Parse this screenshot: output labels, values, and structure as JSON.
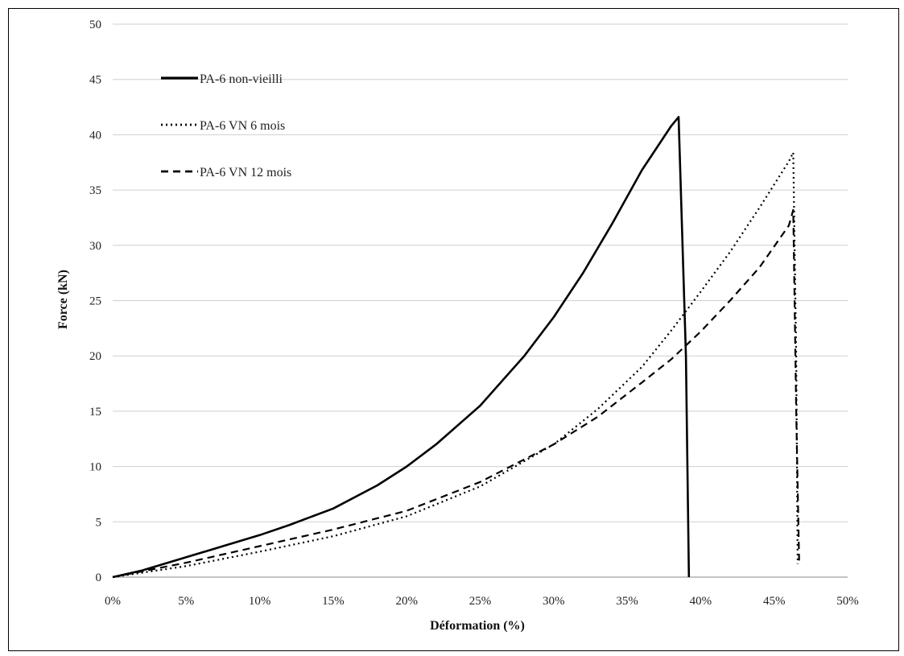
{
  "chart_data": {
    "type": "line",
    "xlabel": "Déformation (%)",
    "ylabel": "Force (kN)",
    "xlim": [
      0,
      50
    ],
    "ylim": [
      0,
      50
    ],
    "x_ticks": [
      "0%",
      "5%",
      "10%",
      "15%",
      "20%",
      "25%",
      "30%",
      "35%",
      "40%",
      "45%",
      "50%"
    ],
    "y_ticks": [
      "0",
      "5",
      "10",
      "15",
      "20",
      "25",
      "30",
      "35",
      "40",
      "45",
      "50"
    ],
    "grid": "horizontal",
    "legend_position": "top-left",
    "series": [
      {
        "name": "PA-6 non-vieilli",
        "style": "solid",
        "color": "#000000",
        "x": [
          0,
          2,
          5,
          8,
          10,
          12,
          15,
          18,
          20,
          22,
          25,
          28,
          30,
          32,
          34,
          36,
          38,
          38.5,
          39.0,
          39.2
        ],
        "y": [
          0,
          0.6,
          1.8,
          3.0,
          3.8,
          4.7,
          6.2,
          8.3,
          10.0,
          12.0,
          15.5,
          20.0,
          23.5,
          27.5,
          32.0,
          36.8,
          40.8,
          41.6,
          20.0,
          0
        ]
      },
      {
        "name": "PA-6 VN 6 mois",
        "style": "dotted",
        "color": "#000000",
        "x": [
          0,
          5,
          10,
          15,
          20,
          25,
          30,
          33,
          36,
          38,
          40,
          42,
          44,
          46,
          46.3,
          46.5,
          46.6
        ],
        "y": [
          0,
          1.0,
          2.3,
          3.7,
          5.5,
          8.2,
          12.0,
          15.2,
          19.0,
          22.3,
          25.8,
          29.4,
          33.4,
          37.6,
          38.4,
          20.0,
          1.2
        ]
      },
      {
        "name": "PA-6 VN 12 mois",
        "style": "dashed",
        "color": "#000000",
        "x": [
          0,
          5,
          10,
          15,
          20,
          25,
          30,
          33,
          36,
          38,
          40,
          42,
          44,
          46,
          46.3,
          46.5,
          46.7
        ],
        "y": [
          0,
          1.3,
          2.8,
          4.3,
          6.0,
          8.6,
          12.0,
          14.5,
          17.6,
          19.7,
          22.2,
          25.0,
          28.0,
          31.8,
          33.2,
          15.0,
          1.5
        ]
      }
    ]
  }
}
